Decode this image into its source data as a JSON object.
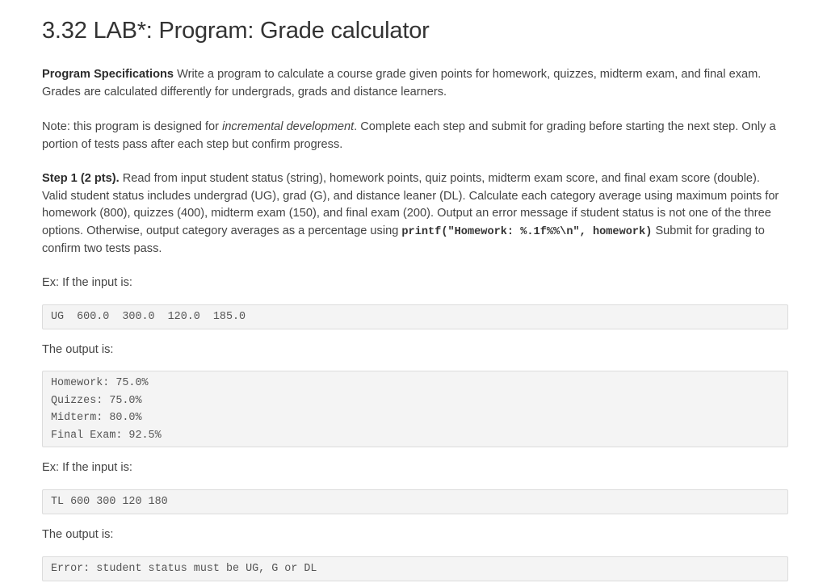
{
  "title": "3.32 LAB*: Program: Grade calculator",
  "spec": {
    "heading": "Program Specifications",
    "text": " Write a program to calculate a course grade given points for homework, quizzes, midterm exam, and final exam. Grades are calculated differently for undergrads, grads and distance learners."
  },
  "note": {
    "before": "Note: this program is designed for ",
    "emphasis": "incremental development",
    "after": ". Complete each step and submit for grading before starting the next step. Only a portion of tests pass after each step but confirm progress."
  },
  "step1": {
    "heading": "Step 1 (2 pts).",
    "text": " Read from input student status (string), homework points, quiz points, midterm exam score, and final exam score (double). Valid student status includes undergrad (UG), grad (G), and distance leaner (DL). Calculate each category average using maximum points for homework (800), quizzes (400), midterm exam (150), and final exam (200). Output an error message if student status is not one of the three options. Otherwise, output category averages as a percentage using ",
    "code": "printf(\"Homework: %.1f%%\\n\", homework)",
    "after": " Submit for grading to confirm two tests pass."
  },
  "example1": {
    "input_label": "Ex: If the input is:",
    "input": "UG  600.0  300.0  120.0  185.0",
    "output_label": "The output is:",
    "output_lines": [
      "Homework: 75.0%",
      "Quizzes: 75.0%",
      "Midterm: 80.0%",
      "Final Exam: 92.5%"
    ]
  },
  "example2": {
    "input_label": "Ex: If the input is:",
    "input": "TL 600 300 120 180",
    "output_label": "The output is:",
    "output_lines": [
      "Error: student status must be UG, G or DL"
    ]
  }
}
